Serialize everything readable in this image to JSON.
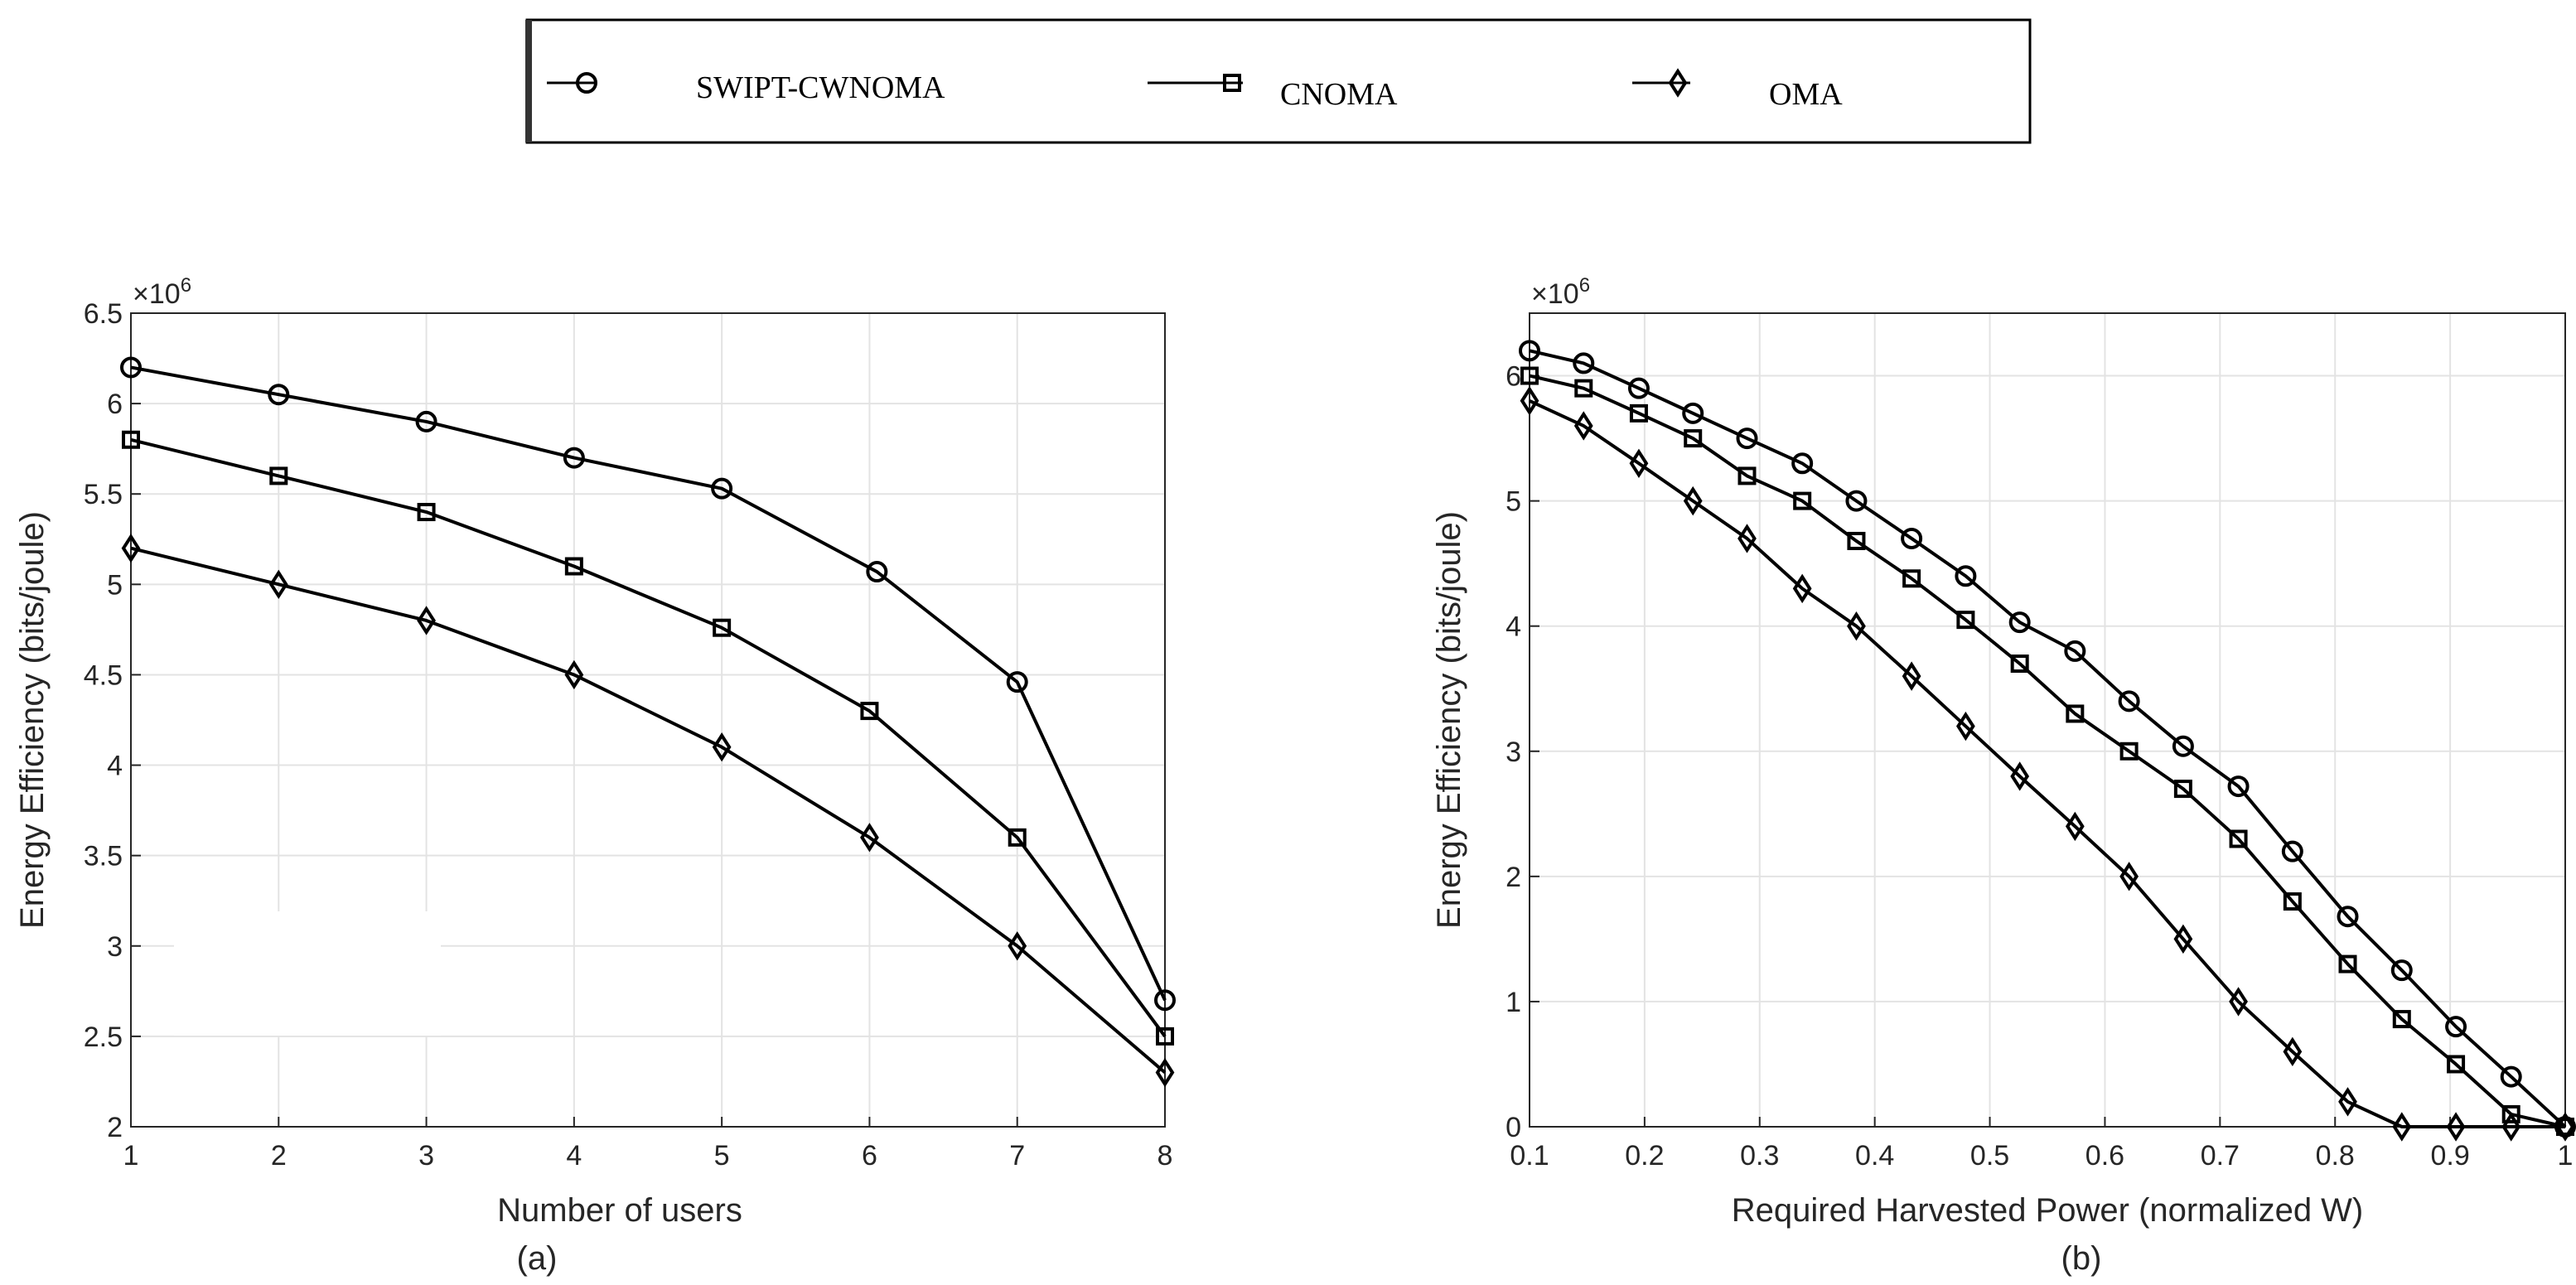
{
  "legend": {
    "entries": [
      {
        "label": "SWIPT-CWNOMA",
        "marker": "circle"
      },
      {
        "label": "CNOMA",
        "marker": "square"
      },
      {
        "label": "OMA",
        "marker": "diamond"
      }
    ]
  },
  "chart_data": [
    {
      "type": "line",
      "caption": "(a)",
      "xlabel": "Number of users",
      "ylabel": "Energy Efficiency (bits/joule)",
      "exponent_label": "×10",
      "exponent_power": "6",
      "xlim": [
        1,
        8
      ],
      "ylim": [
        2,
        6.5
      ],
      "xticks": [
        "1",
        "2",
        "3",
        "4",
        "5",
        "6",
        "7",
        "8"
      ],
      "yticks": [
        "2",
        "2.5",
        "3",
        "3.5",
        "4",
        "4.5",
        "5",
        "5.5",
        "6",
        "6.5"
      ],
      "grid": true,
      "x": [
        1,
        2,
        3,
        4,
        5,
        6.05,
        7,
        8
      ],
      "series": [
        {
          "name": "SWIPT-CWNOMA",
          "marker": "circle",
          "values": [
            6.2,
            6.05,
            5.9,
            5.7,
            5.53,
            5.07,
            4.46,
            2.7
          ]
        },
        {
          "name": "CNOMA",
          "marker": "square",
          "x": [
            1,
            2,
            3,
            4,
            5,
            6,
            7,
            8
          ],
          "values": [
            5.8,
            5.6,
            5.4,
            5.1,
            4.76,
            4.3,
            3.6,
            2.5
          ]
        },
        {
          "name": "OMA",
          "marker": "diamond",
          "x": [
            1,
            2,
            3,
            4,
            5,
            6,
            7,
            8
          ],
          "values": [
            5.2,
            5.0,
            4.8,
            4.5,
            4.1,
            3.6,
            3.0,
            2.3
          ]
        }
      ]
    },
    {
      "type": "line",
      "caption": "(b)",
      "xlabel": "Required Harvested Power (normalized W)",
      "ylabel": "Energy Efficiency (bits/joule)",
      "exponent_label": "×10",
      "exponent_power": "6",
      "xlim": [
        0.1,
        1
      ],
      "ylim": [
        0,
        6.5
      ],
      "xticks": [
        "0.1",
        "0.2",
        "0.3",
        "0.4",
        "0.5",
        "0.6",
        "0.7",
        "0.8",
        "0.9",
        "1"
      ],
      "yticks": [
        "0",
        "1",
        "2",
        "3",
        "4",
        "5",
        "6"
      ],
      "grid": true,
      "x": [
        0.1,
        0.147,
        0.195,
        0.242,
        0.289,
        0.337,
        0.384,
        0.432,
        0.479,
        0.526,
        0.574,
        0.621,
        0.668,
        0.716,
        0.763,
        0.811,
        0.858,
        0.905,
        0.953,
        1.0
      ],
      "series": [
        {
          "name": "SWIPT-CWNOMA",
          "marker": "circle",
          "values": [
            6.2,
            6.1,
            5.9,
            5.7,
            5.5,
            5.3,
            5.0,
            4.7,
            4.4,
            4.03,
            3.8,
            3.4,
            3.04,
            2.72,
            2.2,
            1.68,
            1.25,
            0.8,
            0.4,
            0
          ]
        },
        {
          "name": "CNOMA",
          "marker": "square",
          "values": [
            6.0,
            5.9,
            5.7,
            5.5,
            5.2,
            5.0,
            4.68,
            4.38,
            4.05,
            3.7,
            3.3,
            3.0,
            2.7,
            2.3,
            1.8,
            1.3,
            0.86,
            0.5,
            0.1,
            0
          ]
        },
        {
          "name": "OMA",
          "marker": "diamond",
          "values": [
            5.8,
            5.6,
            5.3,
            5.0,
            4.7,
            4.3,
            4.0,
            3.6,
            3.2,
            2.8,
            2.4,
            2.0,
            1.5,
            1.0,
            0.6,
            0.2,
            0,
            0,
            0,
            0
          ]
        }
      ]
    }
  ]
}
